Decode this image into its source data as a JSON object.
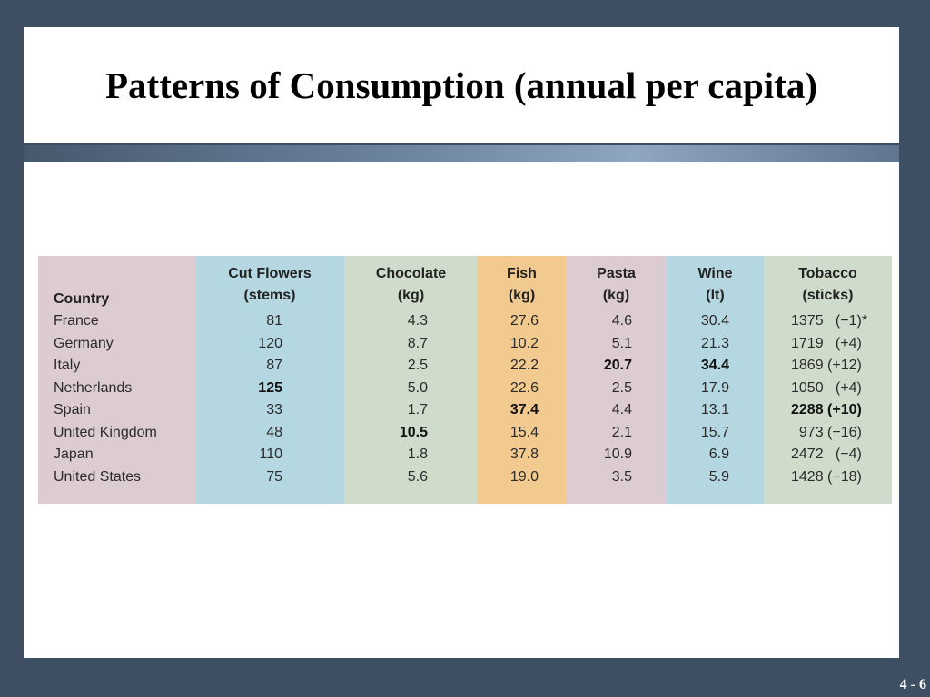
{
  "title": "Patterns of Consumption (annual per capita)",
  "page_number": "4 - 6",
  "table": {
    "columns": [
      {
        "line1": "",
        "line2": "Country"
      },
      {
        "line1": "Cut Flowers",
        "line2": "(stems)"
      },
      {
        "line1": "Chocolate",
        "line2": "(kg)"
      },
      {
        "line1": "Fish",
        "line2": "(kg)"
      },
      {
        "line1": "Pasta",
        "line2": "(kg)"
      },
      {
        "line1": "Wine",
        "line2": "(lt)"
      },
      {
        "line1": "Tobacco",
        "line2": "(sticks)"
      }
    ],
    "rows": [
      {
        "country": "France",
        "flowers": "81",
        "chocolate": "4.3",
        "fish": "27.6",
        "pasta": "4.6",
        "wine": "30.4",
        "tobacco": "1375   (−1)*"
      },
      {
        "country": "Germany",
        "flowers": "120",
        "chocolate": "8.7",
        "fish": "10.2",
        "pasta": "5.1",
        "wine": "21.3",
        "tobacco": "1719   (+4)"
      },
      {
        "country": "Italy",
        "flowers": "87",
        "chocolate": "2.5",
        "fish": "22.2",
        "pasta": "20.7",
        "wine": "34.4",
        "tobacco": "1869 (+12)"
      },
      {
        "country": "Netherlands",
        "flowers": "125",
        "chocolate": "5.0",
        "fish": "22.6",
        "pasta": "2.5",
        "wine": "17.9",
        "tobacco": "1050   (+4)"
      },
      {
        "country": "Spain",
        "flowers": "33",
        "chocolate": "1.7",
        "fish": "37.4",
        "pasta": "4.4",
        "wine": "13.1",
        "tobacco": "2288 (+10)"
      },
      {
        "country": "United Kingdom",
        "flowers": "48",
        "chocolate": "10.5",
        "fish": "15.4",
        "pasta": "2.1",
        "wine": "15.7",
        "tobacco": "  973 (−16)"
      },
      {
        "country": "Japan",
        "flowers": "110",
        "chocolate": "1.8",
        "fish": "37.8",
        "pasta": "10.9",
        "wine": "6.9",
        "tobacco": "2472   (−4)"
      },
      {
        "country": "United States",
        "flowers": "75",
        "chocolate": "5.6",
        "fish": "19.0",
        "pasta": "3.5",
        "wine": "5.9",
        "tobacco": "1428 (−18)"
      }
    ],
    "highlights": {
      "flowers": "Netherlands",
      "chocolate": "United Kingdom",
      "fish": "Spain",
      "pasta": "Italy",
      "wine": "Italy",
      "tobacco": "Spain"
    }
  }
}
